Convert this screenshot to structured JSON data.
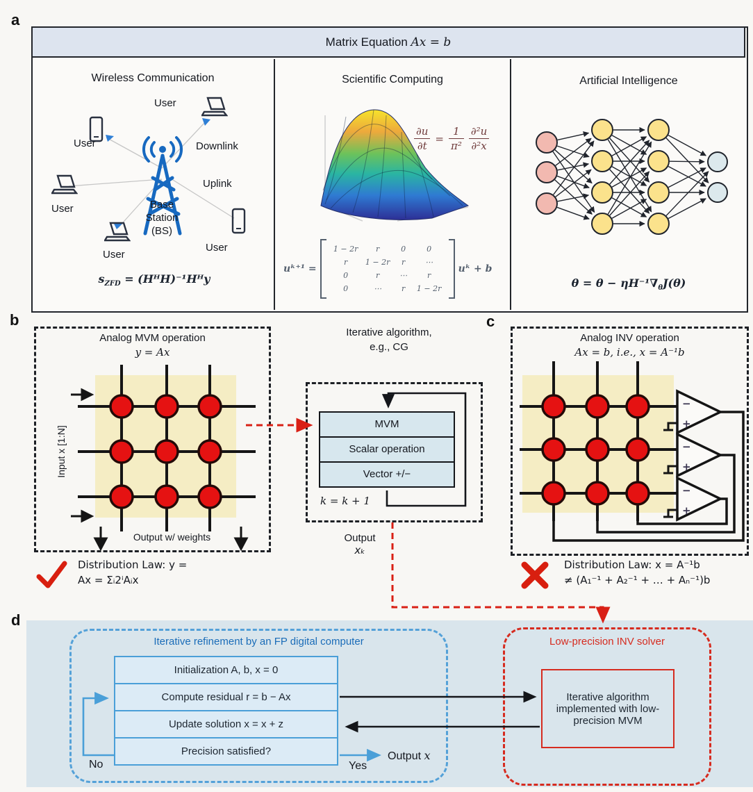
{
  "colors": {
    "accent_blue": "#1a6cb8",
    "dash_blue": "#54a1d8",
    "red": "#d62b1f",
    "crossbar_yellow": "#f5edc4",
    "device_red": "#e51212",
    "panel_d_bg": "#d9e5ec",
    "header_bg": "#dde4ef",
    "base_station_blue": "#1769c0"
  },
  "panel_a": {
    "label": "a",
    "header_prefix": "Matrix Equation ",
    "header_math": "Ax = b",
    "wireless": {
      "title": "Wireless Communication",
      "user_top": "User",
      "user_left": "User",
      "user_bottom_left": "User",
      "user_bottom": "User",
      "user_right": "User",
      "downlink": "Downlink",
      "uplink": "Uplink",
      "bs1": "Base",
      "bs2": "Station",
      "bs3": "(BS)",
      "formula": {
        "s": "s",
        "sub": "ZFD",
        "rest": " = (HᴴH)⁻¹Hᴴy"
      }
    },
    "scientific": {
      "title": "Scientific Computing",
      "pde": {
        "n1": "∂u",
        "d1": "∂t",
        "eq": "=",
        "n2": "1",
        "d2": "π²",
        "n3": "∂²u",
        "d3": "∂²x"
      },
      "matrix": {
        "lhs": "uᵏ⁺¹ =",
        "rows": [
          [
            "1 − 2r",
            "r",
            "0",
            "0"
          ],
          [
            "r",
            "1 − 2r",
            "r",
            "⋯"
          ],
          [
            "0",
            "r",
            "⋯",
            "r"
          ],
          [
            "0",
            "⋯",
            "r",
            "1 − 2r"
          ]
        ],
        "rhs": "uᵏ + b"
      }
    },
    "ai": {
      "title": "Artificial Intelligence",
      "formula": {
        "p1": "θ = θ − ηH⁻¹∇",
        "sub": "θ",
        "p2": "J(θ)"
      }
    }
  },
  "panel_b": {
    "label": "b",
    "title": "Analog MVM operation",
    "title_math": "y = Ax",
    "input_label": "Input x [1:N]",
    "output_label": "Output w/ weights",
    "law_line1": "Distribution Law: y =",
    "law_line2": "Ax = Σᵢ2ⁱAᵢx"
  },
  "algorithm": {
    "title_line1": "Iterative algorithm,",
    "title_line2": "e.g., CG",
    "boxes": [
      "MVM",
      "Scalar operation",
      "Vector +/−"
    ],
    "counter": "k = k + 1",
    "output_line1": "Output",
    "output_line2": "xₖ"
  },
  "panel_c": {
    "label": "c",
    "title": "Analog INV operation",
    "title_math": "Ax = b, i.e., x = A⁻¹b",
    "opamp_minus": "−",
    "opamp_plus": "+",
    "law_line1": "Distribution Law: x = A⁻¹b",
    "law_line2": "≠ (A₁⁻¹ + A₂⁻¹ + … + Aₙ⁻¹)b"
  },
  "panel_d": {
    "label": "d",
    "fp_title": "Iterative refinement by an FP digital computer",
    "steps": [
      "Initialization A, b, x = 0",
      "Compute residual r = b − Ax",
      "Update solution x = x + z",
      "Precision satisfied?"
    ],
    "no": "No",
    "yes": "Yes",
    "output_pre": "Output ",
    "output_math": "x",
    "solver_title": "Low-precision INV solver",
    "solver_box": "Iterative algorithm implemented with low-precision MVM"
  }
}
